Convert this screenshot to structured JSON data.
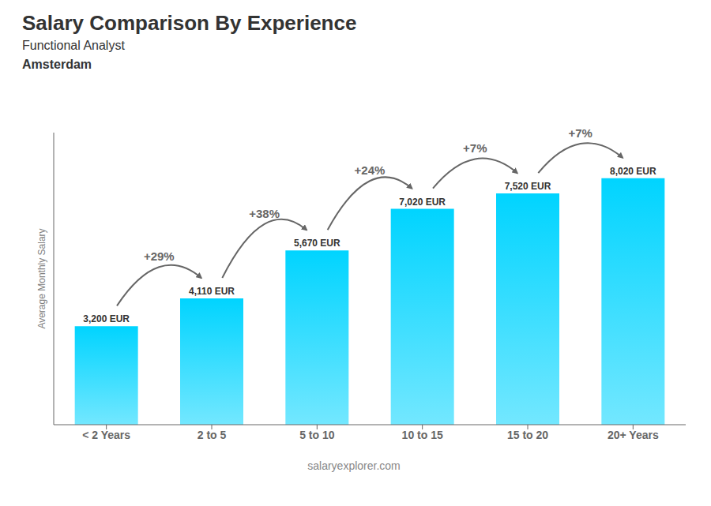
{
  "chart_data": {
    "type": "bar",
    "title": "Salary Comparison By Experience",
    "subtitle": "Functional Analyst",
    "annotations": [
      "Amsterdam",
      "salaryexplorer.com"
    ],
    "ylabel": "Average Monthly Salary",
    "categories": [
      "< 2 Years",
      "2 to 5",
      "5 to 10",
      "10 to 15",
      "15 to 20",
      "20+ Years"
    ],
    "values": [
      3200,
      4110,
      5670,
      7020,
      7520,
      8020
    ],
    "value_labels": [
      "3,200 EUR",
      "4,110 EUR",
      "5,670 EUR",
      "7,020 EUR",
      "7,520 EUR",
      "8,020 EUR"
    ],
    "change_labels": [
      "+29%",
      "+38%",
      "+24%",
      "+7%",
      "+7%"
    ],
    "color": "#00d4ff",
    "ylim": [
      0,
      9500
    ],
    "yticks": [],
    "data_labels": true,
    "tick_labels": "x",
    "grid": false
  }
}
